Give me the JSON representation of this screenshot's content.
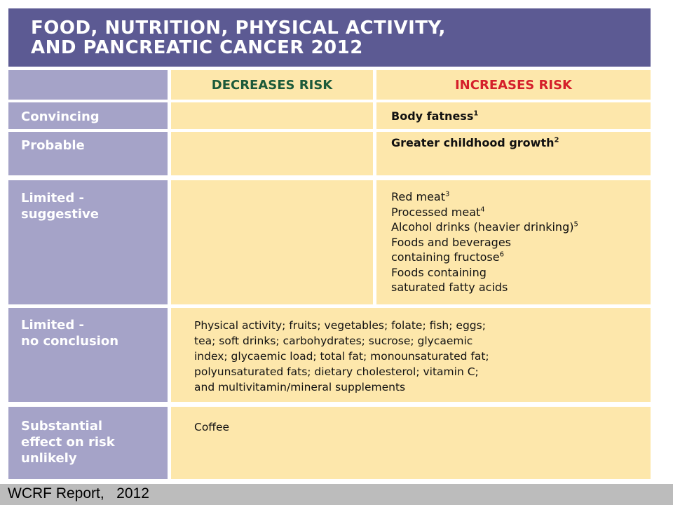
{
  "title": {
    "line1": "FOOD, NUTRITION, PHYSICAL ACTIVITY,",
    "line2": "AND PANCREATIC CANCER 2012"
  },
  "headers": {
    "decreases": "DECREASES RISK",
    "increases": "INCREASES RISK"
  },
  "rows": {
    "convincing": {
      "label": "Convincing",
      "increases": {
        "text": "Body fatness",
        "sup": "1"
      }
    },
    "probable": {
      "label": "Probable",
      "increases": {
        "text": "Greater childhood growth",
        "sup": "2"
      }
    },
    "limited_suggestive": {
      "label_line1": "Limited -",
      "label_line2": "suggestive",
      "increases": [
        {
          "text": "Red meat",
          "sup": "3"
        },
        {
          "text": "Processed meat",
          "sup": "4"
        },
        {
          "text": "Alcohol drinks (heavier drinking)",
          "sup": "5"
        },
        {
          "text": "Foods and beverages",
          "sup": ""
        },
        {
          "text": "containing fructose",
          "sup": "6"
        },
        {
          "text": "Foods containing",
          "sup": ""
        },
        {
          "text": "saturated fatty acids",
          "sup": ""
        }
      ]
    },
    "limited_no_conclusion": {
      "label_line1": "Limited -",
      "label_line2": "no conclusion",
      "text_lines": [
        "Physical activity; fruits; vegetables; folate; fish; eggs;",
        "tea; soft drinks; carbohydrates; sucrose; glycaemic",
        "index; glycaemic load; total fat; monounsaturated fat;",
        "polyunsaturated fats; dietary cholesterol; vitamin C;",
        "and multivitamin/mineral supplements"
      ]
    },
    "substantial": {
      "label_line1": "Substantial",
      "label_line2": "effect on risk",
      "label_line3": "unlikely",
      "text": "Coffee"
    }
  },
  "footer": "WCRF Report,   2012",
  "colors": {
    "title_bg": "#5c5a93",
    "label_bg": "#a5a3c8",
    "cell_bg": "#fde7ab",
    "decreases": "#1c5a3a",
    "increases": "#d51f2b"
  }
}
